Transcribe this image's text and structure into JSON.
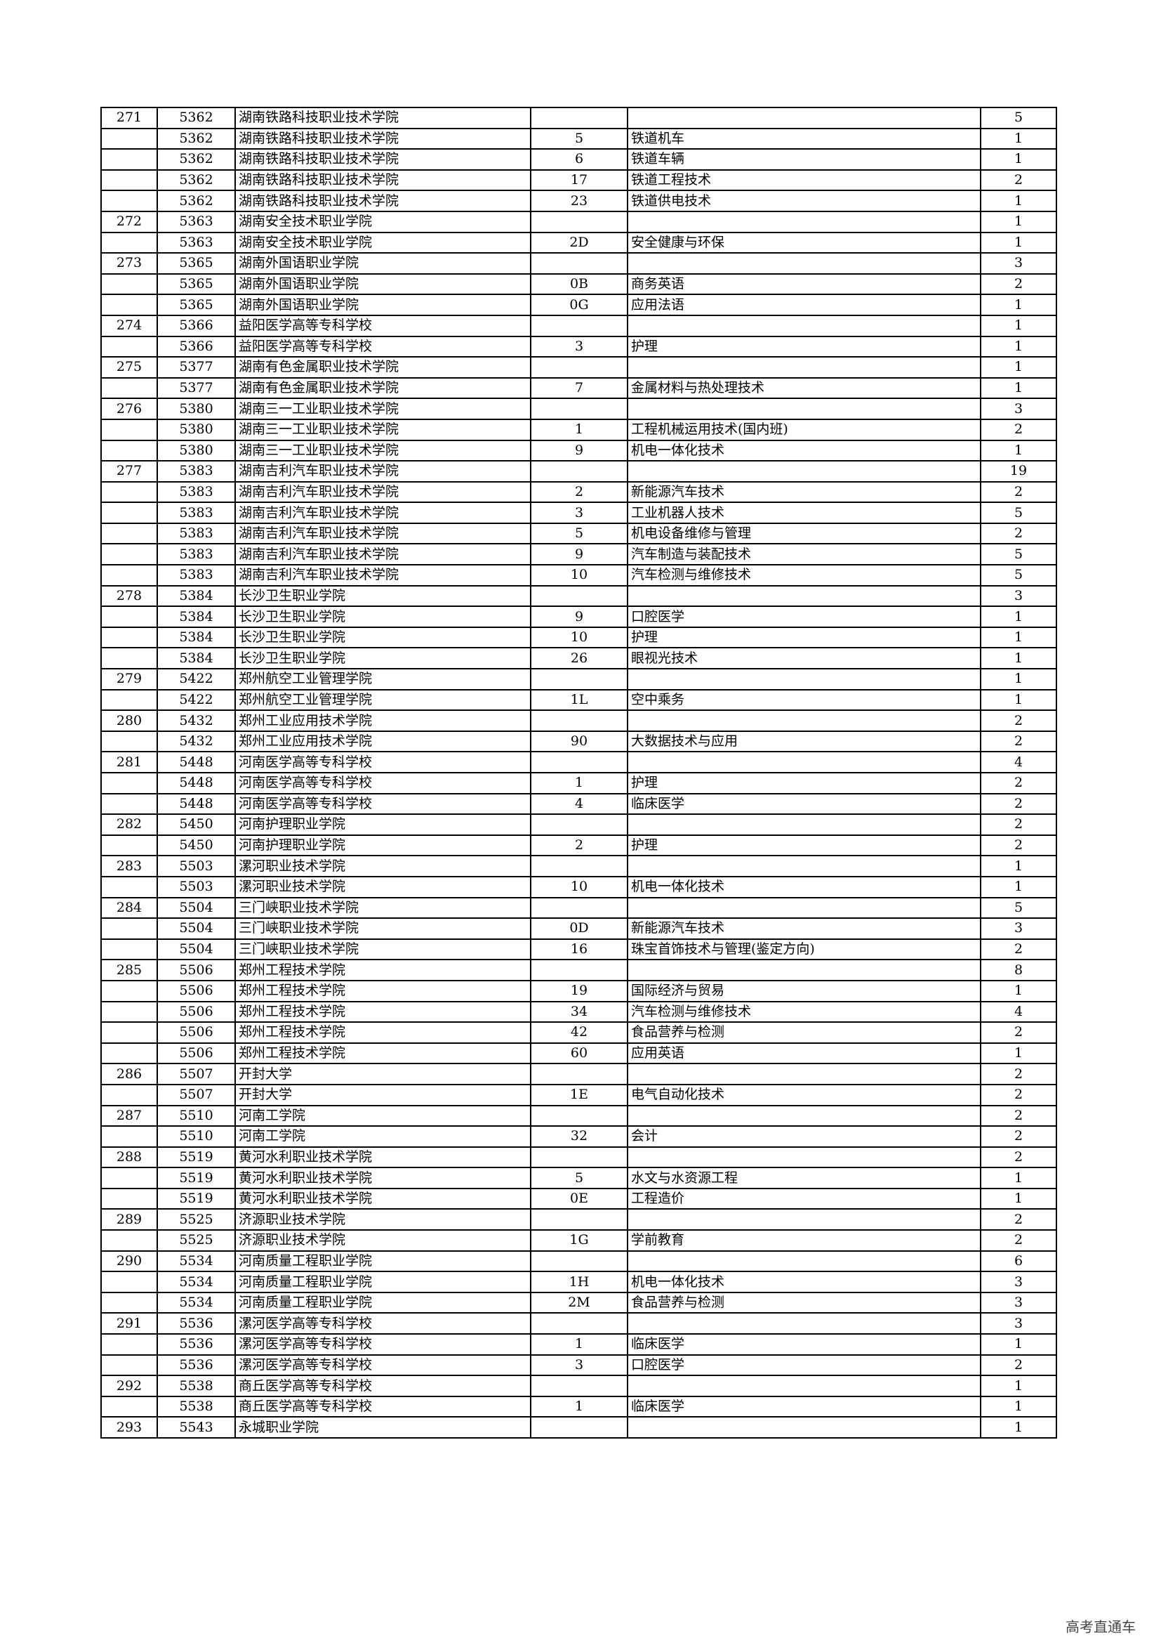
{
  "table": {
    "rows": [
      [
        "271",
        "5362",
        "湖南铁路科技职业技术学院",
        "",
        "",
        "5"
      ],
      [
        "",
        "5362",
        "湖南铁路科技职业技术学院",
        "5",
        "铁道机车",
        "1"
      ],
      [
        "",
        "5362",
        "湖南铁路科技职业技术学院",
        "6",
        "铁道车辆",
        "1"
      ],
      [
        "",
        "5362",
        "湖南铁路科技职业技术学院",
        "17",
        "铁道工程技术",
        "2"
      ],
      [
        "",
        "5362",
        "湖南铁路科技职业技术学院",
        "23",
        "铁道供电技术",
        "1"
      ],
      [
        "272",
        "5363",
        "湖南安全技术职业学院",
        "",
        "",
        "1"
      ],
      [
        "",
        "5363",
        "湖南安全技术职业学院",
        "2D",
        "安全健康与环保",
        "1"
      ],
      [
        "273",
        "5365",
        "湖南外国语职业学院",
        "",
        "",
        "3"
      ],
      [
        "",
        "5365",
        "湖南外国语职业学院",
        "0B",
        "商务英语",
        "2"
      ],
      [
        "",
        "5365",
        "湖南外国语职业学院",
        "0G",
        "应用法语",
        "1"
      ],
      [
        "274",
        "5366",
        "益阳医学高等专科学校",
        "",
        "",
        "1"
      ],
      [
        "",
        "5366",
        "益阳医学高等专科学校",
        "3",
        "护理",
        "1"
      ],
      [
        "275",
        "5377",
        "湖南有色金属职业技术学院",
        "",
        "",
        "1"
      ],
      [
        "",
        "5377",
        "湖南有色金属职业技术学院",
        "7",
        "金属材料与热处理技术",
        "1"
      ],
      [
        "276",
        "5380",
        "湖南三一工业职业技术学院",
        "",
        "",
        "3"
      ],
      [
        "",
        "5380",
        "湖南三一工业职业技术学院",
        "1",
        "工程机械运用技术(国内班)",
        "2"
      ],
      [
        "",
        "5380",
        "湖南三一工业职业技术学院",
        "9",
        "机电一体化技术",
        "1"
      ],
      [
        "277",
        "5383",
        "湖南吉利汽车职业技术学院",
        "",
        "",
        "19"
      ],
      [
        "",
        "5383",
        "湖南吉利汽车职业技术学院",
        "2",
        "新能源汽车技术",
        "2"
      ],
      [
        "",
        "5383",
        "湖南吉利汽车职业技术学院",
        "3",
        "工业机器人技术",
        "5"
      ],
      [
        "",
        "5383",
        "湖南吉利汽车职业技术学院",
        "5",
        "机电设备维修与管理",
        "2"
      ],
      [
        "",
        "5383",
        "湖南吉利汽车职业技术学院",
        "9",
        "汽车制造与装配技术",
        "5"
      ],
      [
        "",
        "5383",
        "湖南吉利汽车职业技术学院",
        "10",
        "汽车检测与维修技术",
        "5"
      ],
      [
        "278",
        "5384",
        "长沙卫生职业学院",
        "",
        "",
        "3"
      ],
      [
        "",
        "5384",
        "长沙卫生职业学院",
        "9",
        "口腔医学",
        "1"
      ],
      [
        "",
        "5384",
        "长沙卫生职业学院",
        "10",
        "护理",
        "1"
      ],
      [
        "",
        "5384",
        "长沙卫生职业学院",
        "26",
        "眼视光技术",
        "1"
      ],
      [
        "279",
        "5422",
        "郑州航空工业管理学院",
        "",
        "",
        "1"
      ],
      [
        "",
        "5422",
        "郑州航空工业管理学院",
        "1L",
        "空中乘务",
        "1"
      ],
      [
        "280",
        "5432",
        "郑州工业应用技术学院",
        "",
        "",
        "2"
      ],
      [
        "",
        "5432",
        "郑州工业应用技术学院",
        "90",
        "大数据技术与应用",
        "2"
      ],
      [
        "281",
        "5448",
        "河南医学高等专科学校",
        "",
        "",
        "4"
      ],
      [
        "",
        "5448",
        "河南医学高等专科学校",
        "1",
        "护理",
        "2"
      ],
      [
        "",
        "5448",
        "河南医学高等专科学校",
        "4",
        "临床医学",
        "2"
      ],
      [
        "282",
        "5450",
        "河南护理职业学院",
        "",
        "",
        "2"
      ],
      [
        "",
        "5450",
        "河南护理职业学院",
        "2",
        "护理",
        "2"
      ],
      [
        "283",
        "5503",
        "漯河职业技术学院",
        "",
        "",
        "1"
      ],
      [
        "",
        "5503",
        "漯河职业技术学院",
        "10",
        "机电一体化技术",
        "1"
      ],
      [
        "284",
        "5504",
        "三门峡职业技术学院",
        "",
        "",
        "5"
      ],
      [
        "",
        "5504",
        "三门峡职业技术学院",
        "0D",
        "新能源汽车技术",
        "3"
      ],
      [
        "",
        "5504",
        "三门峡职业技术学院",
        "16",
        "珠宝首饰技术与管理(鉴定方向)",
        "2"
      ],
      [
        "285",
        "5506",
        "郑州工程技术学院",
        "",
        "",
        "8"
      ],
      [
        "",
        "5506",
        "郑州工程技术学院",
        "19",
        "国际经济与贸易",
        "1"
      ],
      [
        "",
        "5506",
        "郑州工程技术学院",
        "34",
        "汽车检测与维修技术",
        "4"
      ],
      [
        "",
        "5506",
        "郑州工程技术学院",
        "42",
        "食品营养与检测",
        "2"
      ],
      [
        "",
        "5506",
        "郑州工程技术学院",
        "60",
        "应用英语",
        "1"
      ],
      [
        "286",
        "5507",
        "开封大学",
        "",
        "",
        "2"
      ],
      [
        "",
        "5507",
        "开封大学",
        "1E",
        "电气自动化技术",
        "2"
      ],
      [
        "287",
        "5510",
        "河南工学院",
        "",
        "",
        "2"
      ],
      [
        "",
        "5510",
        "河南工学院",
        "32",
        "会计",
        "2"
      ],
      [
        "288",
        "5519",
        "黄河水利职业技术学院",
        "",
        "",
        "2"
      ],
      [
        "",
        "5519",
        "黄河水利职业技术学院",
        "5",
        "水文与水资源工程",
        "1"
      ],
      [
        "",
        "5519",
        "黄河水利职业技术学院",
        "0E",
        "工程造价",
        "1"
      ],
      [
        "289",
        "5525",
        "济源职业技术学院",
        "",
        "",
        "2"
      ],
      [
        "",
        "5525",
        "济源职业技术学院",
        "1G",
        "学前教育",
        "2"
      ],
      [
        "290",
        "5534",
        "河南质量工程职业学院",
        "",
        "",
        "6"
      ],
      [
        "",
        "5534",
        "河南质量工程职业学院",
        "1H",
        "机电一体化技术",
        "3"
      ],
      [
        "",
        "5534",
        "河南质量工程职业学院",
        "2M",
        "食品营养与检测",
        "3"
      ],
      [
        "291",
        "5536",
        "漯河医学高等专科学校",
        "",
        "",
        "3"
      ],
      [
        "",
        "5536",
        "漯河医学高等专科学校",
        "1",
        "临床医学",
        "1"
      ],
      [
        "",
        "5536",
        "漯河医学高等专科学校",
        "3",
        "口腔医学",
        "2"
      ],
      [
        "292",
        "5538",
        "商丘医学高等专科学校",
        "",
        "",
        "1"
      ],
      [
        "",
        "5538",
        "商丘医学高等专科学校",
        "1",
        "临床医学",
        "1"
      ],
      [
        "293",
        "5543",
        "永城职业学院",
        "",
        "",
        "1"
      ]
    ]
  },
  "watermark": "高考直通车"
}
